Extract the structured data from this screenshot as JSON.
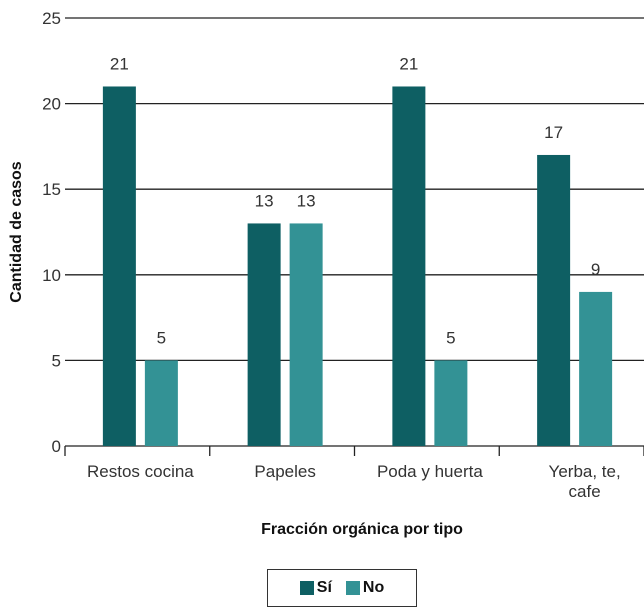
{
  "chart_data": {
    "type": "bar",
    "xlabel": "Fracción orgánica por tipo",
    "ylabel": "Cantidad de casos",
    "ylim": [
      0,
      25
    ],
    "yticks": [
      0,
      5,
      10,
      15,
      20,
      25
    ],
    "grid": true,
    "legend_placement": "bottom-center",
    "categories": [
      [
        "Restos cocina"
      ],
      [
        "Papeles"
      ],
      [
        "Poda y huerta"
      ],
      [
        "Yerba, te,",
        "cafe"
      ]
    ],
    "series": [
      {
        "name": "Sí",
        "color": "#0e5f63",
        "values": [
          21,
          13,
          21,
          17
        ]
      },
      {
        "name": "No",
        "color": "#339295",
        "values": [
          5,
          13,
          5,
          9
        ]
      }
    ]
  }
}
